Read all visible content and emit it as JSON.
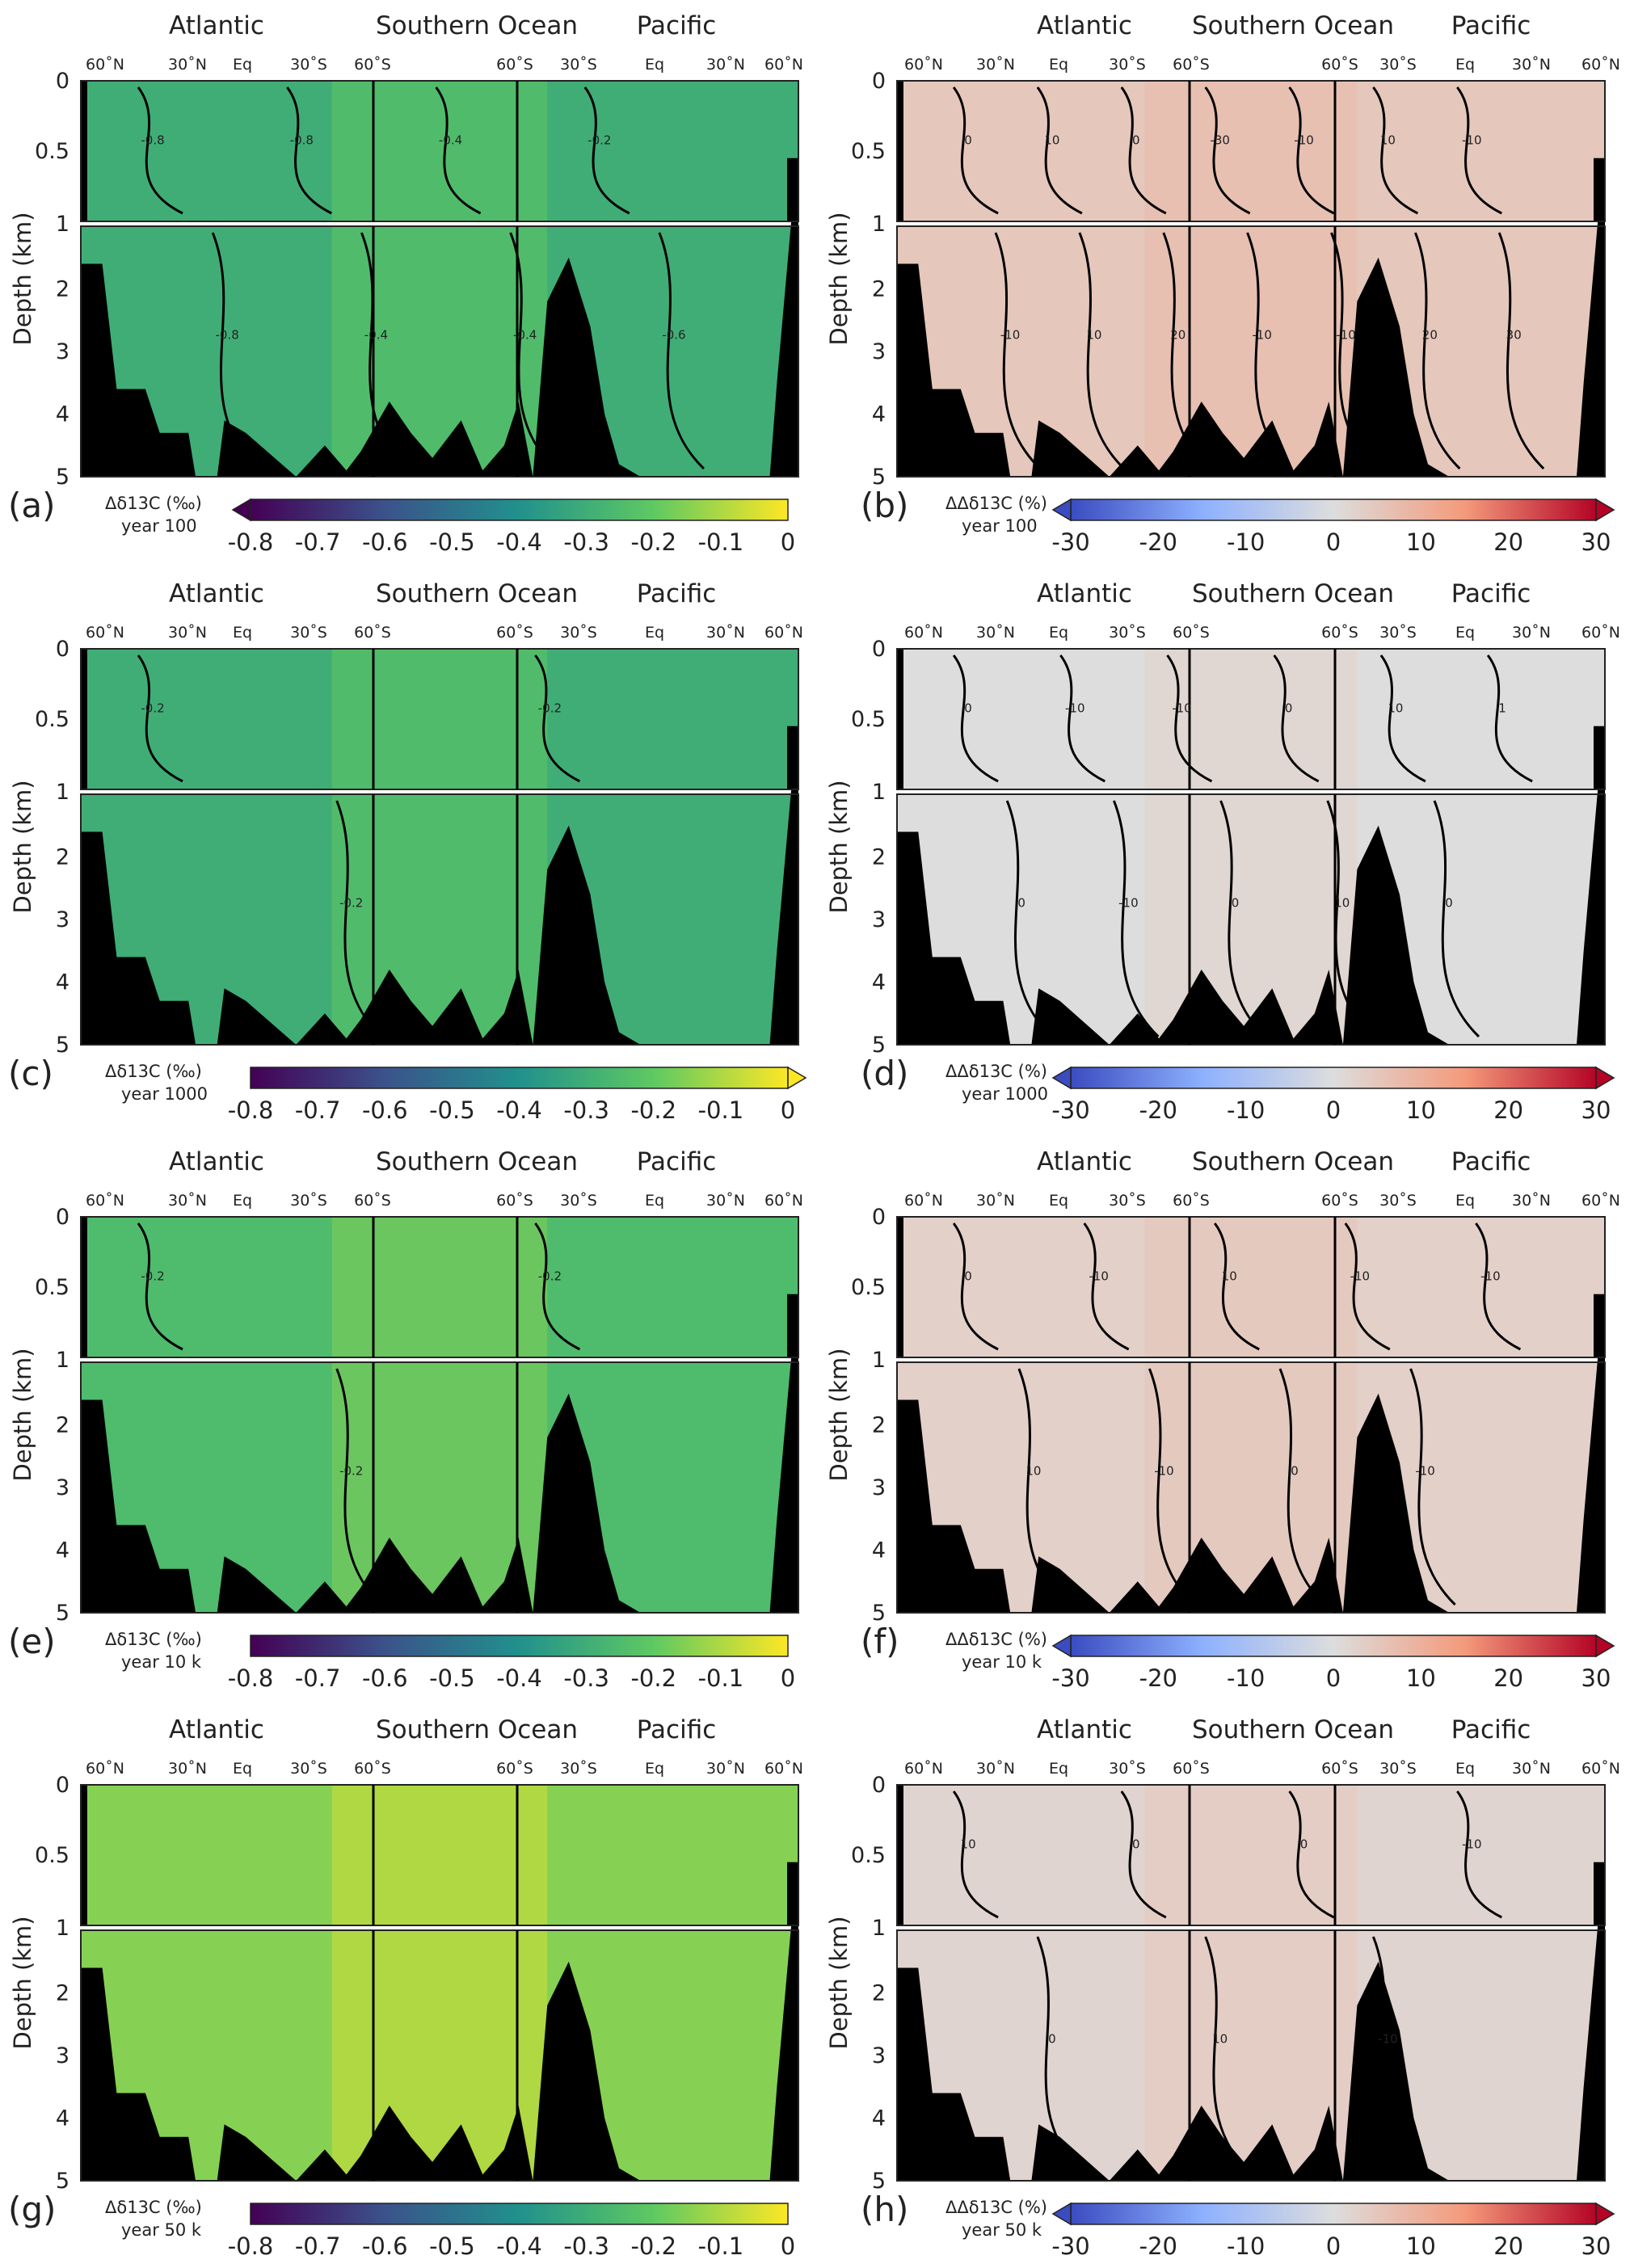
{
  "chart_data": {
    "type": "heatmap",
    "basins": [
      "Atlantic",
      "Southern Ocean",
      "Pacific"
    ],
    "lat_ticks": [
      "60˚N",
      "30˚N",
      "Eq",
      "30˚S",
      "60˚S",
      "60˚S",
      "30˚S",
      "Eq",
      "30˚N",
      "60˚N"
    ],
    "ylabel": "Depth (km)",
    "depth_ticks": [
      "0",
      "0.5",
      "1",
      "2",
      "3",
      "4",
      "5"
    ],
    "left_colorbar": {
      "ticks": [
        "-0.8",
        "-0.7",
        "-0.6",
        "-0.5",
        "-0.4",
        "-0.3",
        "-0.2",
        "-0.1",
        "0"
      ],
      "range": [
        -0.8,
        0
      ],
      "colors": [
        "#440154",
        "#3b528b",
        "#21918c",
        "#5ec962",
        "#fde725"
      ]
    },
    "right_colorbar": {
      "ticks": [
        "-30",
        "-20",
        "-10",
        "0",
        "10",
        "20",
        "30"
      ],
      "range": [
        -30,
        30
      ],
      "colors": [
        "#3b4cc0",
        "#8db0fe",
        "#dddddd",
        "#f49a7b",
        "#b40426"
      ]
    },
    "panels": [
      {
        "id": "(a)",
        "variable": "Δδ13C (‰)",
        "time": "year 100",
        "contours": [
          "-0.8",
          "-0.8",
          "-0.8",
          "-0.4",
          "-0.4",
          "-0.4",
          "-0.2",
          "-0.6"
        ],
        "field_mean": -0.3
      },
      {
        "id": "(b)",
        "variable": "ΔΔδ13C (%)",
        "time": "year 100",
        "contours": [
          "0",
          "-10",
          "10",
          "10",
          "0",
          "20",
          "-30",
          "-10",
          "-10",
          "-10",
          "10",
          "20",
          "-10",
          "30"
        ],
        "field_mean": 5
      },
      {
        "id": "(c)",
        "variable": "Δδ13C (‰)",
        "time": "year 1000",
        "contours": [
          "-0.2",
          "-0.2",
          "-0.2"
        ],
        "field_mean": -0.3
      },
      {
        "id": "(d)",
        "variable": "ΔΔδ13C (%)",
        "time": "year 1000",
        "contours": [
          "0",
          "0",
          "-10",
          "-10",
          "-10",
          "0",
          "0",
          "10",
          "10",
          "0",
          "1"
        ],
        "field_mean": 0
      },
      {
        "id": "(e)",
        "variable": "Δδ13C (‰)",
        "time": "year 10 k",
        "contours": [
          "-0.2",
          "-0.2",
          "-0.2"
        ],
        "field_mean": -0.25
      },
      {
        "id": "(f)",
        "variable": "ΔΔδ13C (%)",
        "time": "year 10 k",
        "contours": [
          "0",
          "10",
          "-10",
          "-10",
          "10",
          "0",
          "-10",
          "-10",
          "-10"
        ],
        "field_mean": 3
      },
      {
        "id": "(g)",
        "variable": "Δδ13C (‰)",
        "time": "year 50 k",
        "contours": [],
        "field_mean": -0.15
      },
      {
        "id": "(h)",
        "variable": "ΔΔδ13C (%)",
        "time": "year 50 k",
        "contours": [
          "10",
          "0",
          "0",
          "10",
          "0",
          "-10",
          "-10"
        ],
        "field_mean": 2
      }
    ]
  }
}
